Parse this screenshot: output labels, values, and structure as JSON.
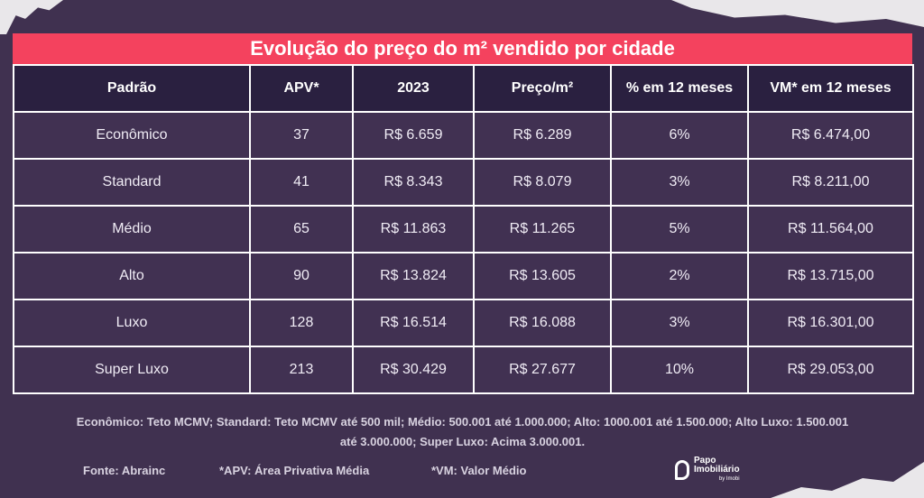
{
  "title": "Evolução do preço do m² vendido por cidade",
  "table": {
    "headers": [
      "Padrão",
      "APV*",
      "2023",
      "Preço/m²",
      "% em 12 meses",
      "VM* em 12 meses"
    ],
    "rows": [
      [
        "Econômico",
        "37",
        "R$ 6.659",
        "R$ 6.289",
        "6%",
        "R$ 6.474,00"
      ],
      [
        "Standard",
        "41",
        "R$ 8.343",
        "R$ 8.079",
        "3%",
        "R$ 8.211,00"
      ],
      [
        "Médio",
        "65",
        "R$ 11.863",
        "R$ 11.265",
        "5%",
        "R$ 11.564,00"
      ],
      [
        "Alto",
        "90",
        "R$ 13.824",
        "R$ 13.605",
        "2%",
        "R$ 13.715,00"
      ],
      [
        "Luxo",
        "128",
        "R$ 16.514",
        "R$ 16.088",
        "3%",
        "R$ 16.301,00"
      ],
      [
        "Super Luxo",
        "213",
        "R$ 30.429",
        "R$ 27.677",
        "10%",
        "R$ 29.053,00"
      ]
    ]
  },
  "legend": {
    "line1": "Econômico: Teto MCMV; Standard: Teto MCMV até 500 mil; Médio: 500.001 até 1.000.000; Alto: 1000.001 até 1.500.000; Alto Luxo: 1.500.001",
    "line2": "até 3.000.000; Super Luxo: Acima 3.000.001."
  },
  "footer": {
    "source": "Fonte: Abrainc",
    "apv_note": "*APV: Área Privativa Média",
    "vm_note": "*VM: Valor Médio"
  },
  "logo": {
    "line1": "Papo",
    "line2": "Imobiliário",
    "tagline": "by Imobi"
  },
  "colors": {
    "background": "#403150",
    "title_bar": "#f4425e",
    "header_row": "#2a2040"
  }
}
